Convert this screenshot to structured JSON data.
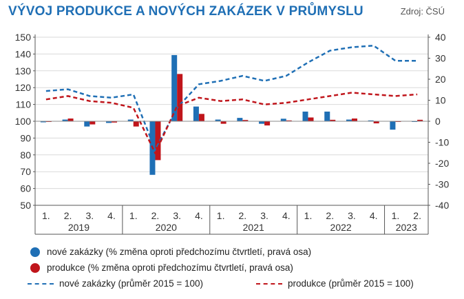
{
  "title": "VÝVOJ PRODUKCE A NOVÝCH ZAKÁZEK V PRŮMYSLU",
  "source": "Zdroj: ČSÚ",
  "colors": {
    "blue": "#1f6fb5",
    "red": "#c0151b",
    "axis": "#555555",
    "title": "#1f6fb5"
  },
  "chart_data": {
    "type": "bar+line",
    "categories": [
      "1.",
      "2.",
      "3.",
      "4.",
      "1.",
      "2.",
      "3.",
      "4.",
      "1.",
      "2.",
      "3.",
      "4.",
      "1.",
      "2.",
      "3.",
      "4.",
      "1.",
      "2."
    ],
    "years": [
      {
        "label": "2019",
        "count": 4
      },
      {
        "label": "2020",
        "count": 4
      },
      {
        "label": "2021",
        "count": 4
      },
      {
        "label": "2022",
        "count": 4
      },
      {
        "label": "2023",
        "count": 2
      }
    ],
    "left_axis": {
      "min": 50,
      "max": 150,
      "ticks": [
        50,
        60,
        70,
        80,
        90,
        100,
        110,
        120,
        130,
        140,
        150
      ]
    },
    "right_axis": {
      "min": -40,
      "max": 40,
      "ticks": [
        -40,
        -30,
        -20,
        -10,
        0,
        10,
        20,
        30,
        40
      ]
    },
    "series": [
      {
        "name": "nové zakázky (% změna oproti předchozímu čtvrtletí, pravá osa)",
        "kind": "bar",
        "axis": "right",
        "color": "#1f6fb5",
        "values": [
          -0.5,
          0.8,
          -2.5,
          -0.8,
          0.8,
          -25.5,
          31.5,
          7.0,
          0.8,
          1.6,
          -1.2,
          1.2,
          4.6,
          4.6,
          0.8,
          0.4,
          -4.0,
          0.0
        ]
      },
      {
        "name": "produkce  (% změna oproti předchozímu čtvrtletí, pravá osa)",
        "kind": "bar",
        "axis": "right",
        "color": "#c0151b",
        "values": [
          -0.2,
          1.3,
          -1.5,
          -0.6,
          -2.5,
          -18.5,
          22.5,
          3.5,
          -1.2,
          0.6,
          -2.0,
          0.4,
          1.8,
          0.7,
          1.3,
          -1.0,
          0.0,
          0.7
        ]
      },
      {
        "name": "nové zakázky (průměr 2015 = 100)",
        "kind": "line",
        "axis": "left",
        "color": "#1f6fb5",
        "values": [
          118,
          119,
          115,
          114,
          116,
          83,
          108,
          122,
          124,
          127,
          124,
          127,
          135,
          142,
          144,
          145,
          136,
          136
        ]
      },
      {
        "name": "produkce (průměr 2015 = 100)",
        "kind": "line",
        "axis": "left",
        "color": "#c0151b",
        "values": [
          113,
          115,
          112,
          111,
          108,
          81,
          109,
          114,
          112,
          113,
          110,
          111,
          113,
          115,
          117,
          116,
          115,
          116
        ]
      }
    ],
    "legend_position": "bottom-left"
  }
}
